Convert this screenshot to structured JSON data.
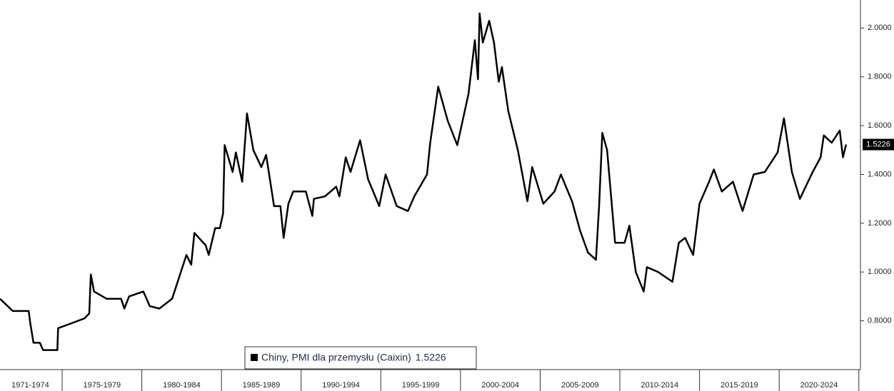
{
  "chart_data": {
    "type": "line",
    "categories": [
      "1971-1974",
      "1975-1979",
      "1980-1984",
      "1985-1989",
      "1990-1994",
      "1995-1999",
      "2000-2004",
      "2005-2009",
      "2010-2014",
      "2015-2019",
      "2020-2024"
    ],
    "xlim": [
      1971.1,
      2025.1
    ],
    "ylim": [
      0.6,
      2.115
    ],
    "yticks": [
      {
        "value": 0.8,
        "label": "0.8000"
      },
      {
        "value": 1.0,
        "label": "1.0000"
      },
      {
        "value": 1.2,
        "label": "1.2000"
      },
      {
        "value": 1.4,
        "label": "1.4000"
      },
      {
        "value": 1.6,
        "label": "1.6000"
      },
      {
        "value": 1.8,
        "label": "1.8000"
      },
      {
        "value": 2.0,
        "label": "2.0000"
      }
    ],
    "x": [
      1971.1,
      1971.9,
      1972.9,
      1973.0,
      1973.2,
      1973.6,
      1973.8,
      1974.7,
      1974.75,
      1975.6,
      1976.4,
      1976.7,
      1976.8,
      1977.0,
      1977.8,
      1978.7,
      1978.9,
      1979.2,
      1980.1,
      1980.5,
      1981.1,
      1981.9,
      1982.2,
      1982.8,
      1983.1,
      1983.3,
      1984.0,
      1984.2,
      1984.6,
      1984.9,
      1985.1,
      1985.2,
      1985.7,
      1985.9,
      1986.3,
      1986.6,
      1987.0,
      1987.5,
      1987.8,
      1988.3,
      1988.7,
      1988.9,
      1989.2,
      1989.5,
      1990.3,
      1990.7,
      1990.8,
      1991.5,
      1992.2,
      1992.4,
      1992.8,
      1993.1,
      1993.7,
      1994.2,
      1994.9,
      1995.3,
      1996.0,
      1996.7,
      1997.1,
      1997.9,
      1998.1,
      1998.6,
      1999.2,
      1999.8,
      2000.5,
      2000.9,
      2001.1,
      2001.2,
      2001.4,
      2001.8,
      2002.1,
      2002.4,
      2002.6,
      2003.0,
      2003.6,
      2004.2,
      2004.5,
      2005.2,
      2005.9,
      2006.3,
      2007.0,
      2007.5,
      2008.0,
      2008.5,
      2008.7,
      2008.9,
      2009.2,
      2009.7,
      2010.3,
      2010.6,
      2011.0,
      2011.5,
      2011.7,
      2012.4,
      2013.3,
      2013.7,
      2014.1,
      2014.6,
      2015.0,
      2015.6,
      2015.9,
      2016.4,
      2017.1,
      2017.7,
      2018.4,
      2019.1,
      2019.9,
      2020.3,
      2020.8,
      2021.3,
      2022.1,
      2022.6,
      2022.8,
      2023.3,
      2023.8,
      2024.0,
      2024.2
    ],
    "series": [
      {
        "name": "Chiny, PMI dla przemysłu (Caixin)",
        "color": "#000000",
        "last_label": "1.5226",
        "values": [
          0.89,
          0.84,
          0.84,
          0.79,
          0.71,
          0.71,
          0.68,
          0.68,
          0.77,
          0.79,
          0.81,
          0.83,
          0.99,
          0.92,
          0.89,
          0.89,
          0.85,
          0.9,
          0.92,
          0.86,
          0.85,
          0.89,
          0.95,
          1.07,
          1.03,
          1.16,
          1.11,
          1.07,
          1.18,
          1.18,
          1.24,
          1.52,
          1.41,
          1.49,
          1.37,
          1.65,
          1.5,
          1.43,
          1.48,
          1.27,
          1.27,
          1.14,
          1.28,
          1.33,
          1.33,
          1.23,
          1.3,
          1.31,
          1.35,
          1.31,
          1.47,
          1.41,
          1.54,
          1.38,
          1.27,
          1.4,
          1.27,
          1.25,
          1.31,
          1.4,
          1.53,
          1.76,
          1.62,
          1.52,
          1.73,
          1.95,
          1.79,
          2.06,
          1.94,
          2.03,
          1.94,
          1.78,
          1.84,
          1.66,
          1.5,
          1.29,
          1.43,
          1.28,
          1.33,
          1.4,
          1.29,
          1.17,
          1.08,
          1.05,
          1.27,
          1.57,
          1.5,
          1.12,
          1.12,
          1.19,
          1.0,
          0.92,
          1.02,
          1.0,
          0.96,
          1.12,
          1.14,
          1.07,
          1.28,
          1.37,
          1.42,
          1.33,
          1.37,
          1.25,
          1.4,
          1.41,
          1.49,
          1.63,
          1.41,
          1.3,
          1.41,
          1.47,
          1.56,
          1.53,
          1.58,
          1.47,
          1.5226
        ]
      }
    ]
  }
}
